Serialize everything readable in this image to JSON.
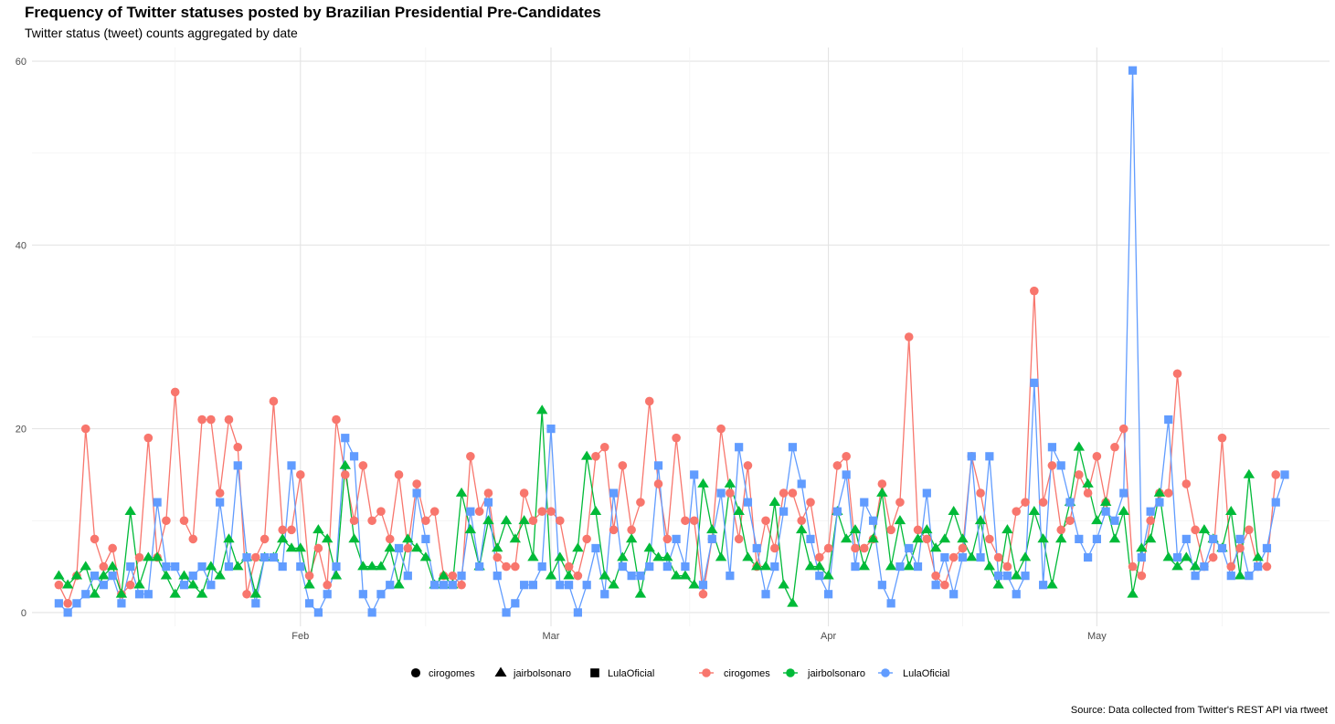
{
  "title": "Frequency of Twitter statuses posted by Brazilian Presidential Pre-Candidates",
  "subtitle": "Twitter status (tweet) counts aggregated by date",
  "caption": "Source: Data collected from Twitter's REST API via rtweet",
  "chart_data": {
    "type": "line",
    "x_axis": {
      "type": "date",
      "range": [
        "2018-01-02",
        "2018-05-27"
      ],
      "ticks": [
        {
          "date": "2018-02-01",
          "label": "Feb"
        },
        {
          "date": "2018-03-01",
          "label": "Mar"
        },
        {
          "date": "2018-04-01",
          "label": "Apr"
        },
        {
          "date": "2018-05-01",
          "label": "May"
        }
      ]
    },
    "y_axis": {
      "range": [
        -1.5,
        61.5
      ],
      "ticks": [
        0,
        20,
        40,
        60
      ]
    },
    "grid": true,
    "legend_position": "bottom",
    "legend_shape_title": "",
    "legend_color_title": "",
    "series": [
      {
        "name": "cirogomes",
        "color": "#F8766D",
        "marker": "circle",
        "start_date": "2018-01-05",
        "values": [
          3,
          1,
          4,
          20,
          8,
          5,
          7,
          2,
          3,
          6,
          19,
          6,
          10,
          24,
          10,
          8,
          21,
          21,
          13,
          21,
          18,
          2,
          6,
          8,
          23,
          9,
          9,
          15,
          4,
          7,
          3,
          21,
          15,
          10,
          16,
          10,
          11,
          8,
          15,
          7,
          14,
          10,
          11,
          4,
          4,
          3,
          17,
          11,
          13,
          6,
          5,
          5,
          13,
          10,
          11,
          11,
          10,
          5,
          4,
          8,
          17,
          18,
          9,
          16,
          9,
          12,
          23,
          14,
          8,
          19,
          10,
          10,
          2,
          8,
          20,
          13,
          8,
          16,
          5,
          10,
          7,
          13,
          13,
          10,
          12,
          6,
          7,
          16,
          17,
          7,
          7,
          8,
          14,
          9,
          12,
          30,
          9,
          8,
          4,
          3,
          6,
          7,
          17,
          13,
          8,
          6,
          5,
          11,
          12,
          35,
          12,
          16,
          9,
          10,
          15,
          13,
          17,
          12,
          18,
          20,
          5,
          4,
          10,
          13,
          13,
          26,
          14,
          9,
          5,
          6,
          19,
          5,
          7,
          9,
          5,
          5,
          15
        ]
      },
      {
        "name": "jairbolsonaro",
        "color": "#00BA38",
        "marker": "triangle",
        "start_date": "2018-01-05",
        "values": [
          4,
          3,
          4,
          5,
          2,
          4,
          5,
          2,
          11,
          3,
          6,
          6,
          4,
          2,
          4,
          3,
          2,
          5,
          4,
          8,
          5,
          6,
          2,
          6,
          6,
          8,
          7,
          7,
          3,
          9,
          8,
          4,
          16,
          8,
          5,
          5,
          5,
          7,
          3,
          8,
          7,
          6,
          3,
          4,
          3,
          13,
          9,
          5,
          10,
          7,
          10,
          8,
          10,
          6,
          22,
          4,
          6,
          4,
          7,
          17,
          11,
          4,
          3,
          6,
          8,
          2,
          7,
          6,
          6,
          4,
          4,
          3,
          14,
          9,
          6,
          14,
          11,
          6,
          5,
          5,
          12,
          3,
          1,
          9,
          5,
          5,
          4,
          11,
          8,
          9,
          5,
          8,
          13,
          5,
          10,
          5,
          8,
          9,
          7,
          8,
          11,
          8,
          6,
          10,
          5,
          3,
          9,
          4,
          6,
          11,
          8,
          3,
          8,
          12,
          18,
          14,
          10,
          12,
          8,
          11,
          2,
          7,
          8,
          13,
          6,
          5,
          6,
          5,
          9,
          8,
          7,
          11,
          4,
          15,
          6
        ]
      },
      {
        "name": "LulaOficial",
        "color": "#619CFF",
        "marker": "square",
        "start_date": "2018-01-05",
        "values": [
          1,
          0,
          1,
          2,
          4,
          3,
          4,
          1,
          5,
          2,
          2,
          12,
          5,
          5,
          3,
          4,
          5,
          3,
          12,
          5,
          16,
          6,
          1,
          6,
          6,
          5,
          16,
          5,
          1,
          0,
          2,
          5,
          19,
          17,
          2,
          0,
          2,
          3,
          7,
          4,
          13,
          8,
          3,
          3,
          3,
          4,
          11,
          5,
          12,
          4,
          0,
          1,
          3,
          3,
          5,
          20,
          3,
          3,
          0,
          3,
          7,
          2,
          13,
          5,
          4,
          4,
          5,
          16,
          5,
          8,
          5,
          15,
          3,
          8,
          13,
          4,
          18,
          12,
          7,
          2,
          5,
          11,
          18,
          14,
          8,
          4,
          2,
          11,
          15,
          5,
          12,
          10,
          3,
          1,
          5,
          7,
          5,
          13,
          3,
          6,
          2,
          6,
          17,
          6,
          17,
          4,
          4,
          2,
          4,
          25,
          3,
          18,
          16,
          12,
          8,
          6,
          8,
          11,
          10,
          13,
          59,
          6,
          11,
          12,
          21,
          6,
          8,
          4,
          5,
          8,
          7,
          4,
          8,
          4,
          5,
          7,
          12,
          15
        ]
      }
    ]
  }
}
